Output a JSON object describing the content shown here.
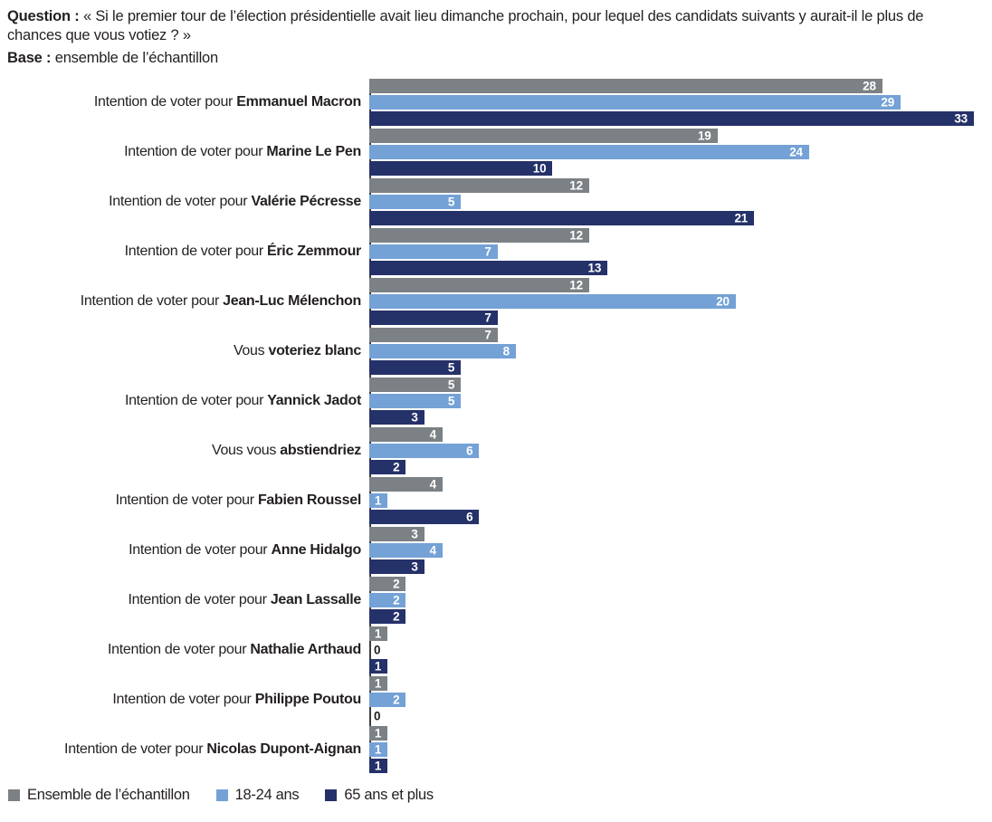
{
  "header": {
    "question_label": "Question :",
    "question_text": " « Si le premier tour de l’élection présidentielle avait lieu dimanche prochain, pour lequel des candidats suivants y aurait-il le plus de chances que vous votiez ? »",
    "base_label": "Base :",
    "base_text": " ensemble de l’échantillon"
  },
  "chart_data": {
    "type": "bar",
    "orientation": "horizontal",
    "xlim": [
      0,
      33
    ],
    "grid": false,
    "legend_position": "bottom-left",
    "categories": [
      {
        "prefix": "Intention de voter pour ",
        "name": "Emmanuel Macron"
      },
      {
        "prefix": "Intention de voter pour ",
        "name": "Marine Le Pen"
      },
      {
        "prefix": "Intention de voter pour ",
        "name": "Valérie Pécresse"
      },
      {
        "prefix": "Intention de voter pour ",
        "name": "Éric Zemmour"
      },
      {
        "prefix": "Intention de voter pour ",
        "name": "Jean-Luc Mélenchon"
      },
      {
        "prefix": "Vous ",
        "name": "voteriez blanc"
      },
      {
        "prefix": "Intention de voter pour ",
        "name": "Yannick Jadot"
      },
      {
        "prefix": "Vous vous ",
        "name": "abstiendriez"
      },
      {
        "prefix": "Intention de voter pour ",
        "name": "Fabien Roussel"
      },
      {
        "prefix": "Intention de voter pour ",
        "name": "Anne Hidalgo"
      },
      {
        "prefix": "Intention de voter pour ",
        "name": "Jean Lassalle"
      },
      {
        "prefix": "Intention de voter pour ",
        "name": "Nathalie Arthaud"
      },
      {
        "prefix": "Intention de voter pour ",
        "name": "Philippe Poutou"
      },
      {
        "prefix": "Intention de voter pour ",
        "name": "Nicolas Dupont-Aignan"
      }
    ],
    "series": [
      {
        "name": "Ensemble de l’échantillon",
        "color": "#7b8184",
        "values": [
          28,
          19,
          12,
          12,
          12,
          7,
          5,
          4,
          4,
          3,
          2,
          1,
          1,
          1
        ]
      },
      {
        "name": "18-24 ans",
        "color": "#74a1d6",
        "values": [
          29,
          24,
          5,
          7,
          20,
          8,
          5,
          6,
          1,
          4,
          2,
          0,
          2,
          1
        ]
      },
      {
        "name": "65 ans et plus",
        "color": "#253169",
        "values": [
          33,
          10,
          21,
          13,
          7,
          5,
          3,
          2,
          6,
          3,
          2,
          1,
          0,
          1
        ]
      }
    ]
  },
  "legend": {
    "items": [
      {
        "label": "Ensemble de l’échantillon",
        "color": "#7b8184"
      },
      {
        "label": "18-24 ans",
        "color": "#74a1d6"
      },
      {
        "label": "65 ans et plus",
        "color": "#253169"
      }
    ]
  },
  "colors": {
    "axis_line": "#3a3d42",
    "text": "#231f20",
    "value_label": "#ffffff",
    "zero_value_label": "#1d1d1b",
    "background": "#ffffff"
  }
}
